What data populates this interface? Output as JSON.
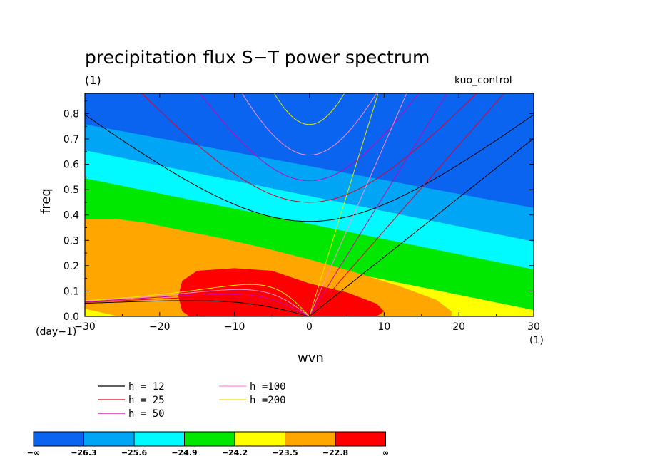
{
  "chart_data": {
    "type": "heatmap",
    "title": "precipitation flux S−T power spectrum",
    "subtitle_left": "(1)",
    "subtitle_right": "kuo_control",
    "xlabel": "wvn",
    "ylabel": "freq",
    "x_unit_left": "(day−1)",
    "x_unit_right": "(1)",
    "xlim": [
      -30,
      30
    ],
    "ylim": [
      0,
      0.88
    ],
    "x_ticks": [
      "−30",
      "−20",
      "−10",
      "0",
      "10",
      "20",
      "30"
    ],
    "y_ticks": [
      "0.0",
      "0.1",
      "0.2",
      "0.3",
      "0.4",
      "0.5",
      "0.6",
      "0.7",
      "0.8"
    ],
    "filled_levels": [
      {
        "range": "<-26.3",
        "color": "#0a64f0"
      },
      {
        "range": "-26.3 to -25.6",
        "color": "#00a6f5"
      },
      {
        "range": "-25.6 to -24.9",
        "color": "#00faff"
      },
      {
        "range": "-24.9 to -24.2",
        "color": "#00e800"
      },
      {
        "range": "-24.2 to -23.5",
        "color": "#ffff00"
      },
      {
        "range": "-23.5 to -22.8",
        "color": "#ffa600"
      },
      {
        "range": ">-22.8",
        "color": "#ff0000"
      }
    ],
    "colorbar": {
      "labels": [
        "−∞",
        "−26.3",
        "−25.6",
        "−24.9",
        "−24.2",
        "−23.5",
        "−22.8",
        "∞"
      ],
      "colors": [
        "#0a64f0",
        "#00a6f5",
        "#00faff",
        "#00e800",
        "#ffff00",
        "#ffa600",
        "#ff0000"
      ]
    },
    "dispersion_curves": [
      {
        "label": "h = 12",
        "color": "#000000"
      },
      {
        "label": "h = 25",
        "color": "#e0002a"
      },
      {
        "label": "h = 50",
        "color": "#c800b4"
      },
      {
        "label": "h =100",
        "color": "#ff8cd2"
      },
      {
        "label": "h =200",
        "color": "#e8e800"
      }
    ]
  }
}
